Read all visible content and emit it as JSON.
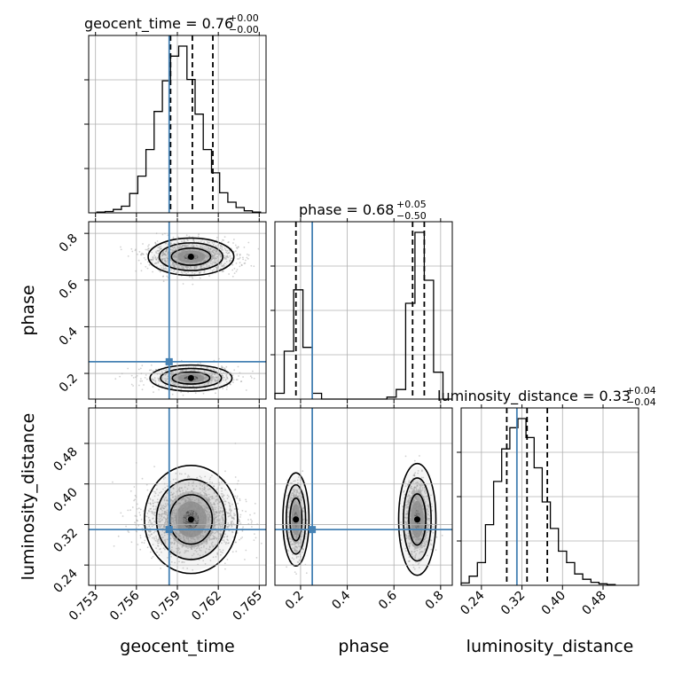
{
  "chart_data": {
    "type": "corner",
    "parameters": [
      "geocent_time",
      "phase",
      "luminosity_distance"
    ],
    "truths": {
      "geocent_time": 0.7584,
      "phase": 0.25,
      "luminosity_distance": 0.31
    },
    "titles": {
      "geocent_time": {
        "label": "geocent_time = 0.76",
        "plus": "+0.00",
        "minus": "−0.00"
      },
      "phase": {
        "label": "phase = 0.68",
        "plus": "+0.05",
        "minus": "−0.50"
      },
      "luminosity_distance": {
        "label": "luminosity_distance = 0.33",
        "plus": "+0.04",
        "minus": "−0.04"
      }
    },
    "axis_labels": {
      "geocent_time": "geocent_time",
      "phase": "phase",
      "luminosity_distance": "luminosity_distance"
    },
    "ranges": {
      "geocent_time": [
        0.7525,
        0.7655
      ],
      "phase": [
        0.09,
        0.85
      ],
      "luminosity_distance": [
        0.2,
        0.55
      ]
    },
    "ticks": {
      "geocent_time": [
        "0.753",
        "0.756",
        "0.759",
        "0.762",
        "0.765"
      ],
      "phase_y": [
        "0.2",
        "0.4",
        "0.6",
        "0.8"
      ],
      "phase_x": [
        "0.2",
        "0.4",
        "0.6",
        "0.8"
      ],
      "luminosity_distance": [
        "0.24",
        "0.32",
        "0.40",
        "0.48"
      ]
    },
    "quantiles": {
      "geocent_time": [
        0.7585,
        0.7601,
        0.7616
      ],
      "phase": [
        0.18,
        0.68,
        0.73
      ],
      "luminosity_distance": [
        0.29,
        0.33,
        0.37
      ]
    },
    "histograms": {
      "geocent_time": {
        "edges": [
          0.7531,
          0.7537,
          0.7543,
          0.7549,
          0.7555,
          0.7561,
          0.7567,
          0.7573,
          0.7579,
          0.7585,
          0.7591,
          0.7597,
          0.7603,
          0.7609,
          0.7615,
          0.7621,
          0.7627,
          0.7633,
          0.7639,
          0.7645,
          0.7651
        ],
        "counts": [
          1,
          2,
          5,
          10,
          29,
          55,
          95,
          152,
          198,
          235,
          250,
          200,
          148,
          95,
          60,
          30,
          16,
          8,
          3,
          1
        ]
      },
      "phase": {
        "edges": [
          0.09,
          0.13,
          0.17,
          0.21,
          0.25,
          0.29,
          0.33,
          0.37,
          0.41,
          0.45,
          0.49,
          0.53,
          0.57,
          0.61,
          0.65,
          0.69,
          0.73,
          0.77,
          0.81,
          0.85
        ],
        "counts": [
          3,
          25,
          57,
          27,
          3,
          0,
          0,
          0,
          0,
          0,
          0,
          0,
          1,
          5,
          50,
          87,
          62,
          14,
          0
        ]
      },
      "luminosity_distance": {
        "edges": [
          0.2,
          0.216,
          0.232,
          0.248,
          0.264,
          0.28,
          0.296,
          0.312,
          0.328,
          0.344,
          0.36,
          0.376,
          0.392,
          0.408,
          0.424,
          0.44,
          0.456,
          0.472,
          0.488,
          0.504
        ],
        "counts": [
          3,
          12,
          30,
          80,
          137,
          180,
          208,
          220,
          195,
          155,
          110,
          75,
          45,
          30,
          15,
          8,
          4,
          2,
          1
        ]
      }
    },
    "grid": true,
    "colors": {
      "truth": "#4682b4",
      "line": "#000000",
      "grid": "#b0b0b0",
      "scatter": "#888888"
    }
  }
}
